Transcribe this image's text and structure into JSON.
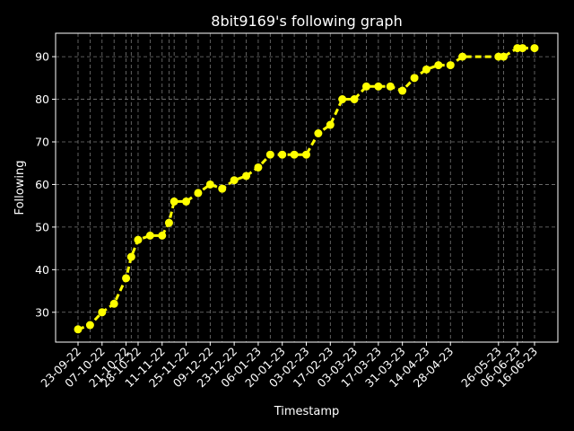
{
  "chart_data": {
    "type": "line",
    "title": "8bit9169's following graph",
    "xlabel": "Timestamp",
    "ylabel": "Following",
    "ylim": [
      23,
      95.5
    ],
    "yticks": [
      30,
      40,
      50,
      60,
      70,
      80,
      90
    ],
    "grid": true,
    "colors": {
      "background": "#000000",
      "line": "#ffff00",
      "marker": "#ffff00",
      "text": "#ffffff",
      "grid": "#777777"
    },
    "x": [
      "23-09-22",
      "30-09-22",
      "07-10-22",
      "14-10-22",
      "21-10-22",
      "24-10-22",
      "28-10-22",
      "04-11-22",
      "11-11-22",
      "15-11-22",
      "18-11-22",
      "25-11-22",
      "02-12-22",
      "09-12-22",
      "16-12-22",
      "23-12-22",
      "30-12-22",
      "06-01-23",
      "13-01-23",
      "20-01-23",
      "27-01-23",
      "03-02-23",
      "10-02-23",
      "17-02-23",
      "24-02-23",
      "03-03-23",
      "10-03-23",
      "17-03-23",
      "24-03-23",
      "31-03-23",
      "07-04-23",
      "14-04-23",
      "21-04-23",
      "28-04-23",
      "05-05-23",
      "26-05-23",
      "29-05-23",
      "06-06-23",
      "09-06-23",
      "16-06-23"
    ],
    "x_tick_labels": [
      "23-09-22",
      "07-10-22",
      "21-10-22",
      "28-10-22",
      "11-11-22",
      "25-11-22",
      "09-12-22",
      "23-12-22",
      "06-01-23",
      "20-01-23",
      "03-02-23",
      "17-02-23",
      "03-03-23",
      "17-03-23",
      "31-03-23",
      "14-04-23",
      "28-04-23",
      "26-05-23",
      "06-06-23",
      "16-06-23"
    ],
    "series": [
      {
        "values": [
          26,
          27,
          30,
          32,
          38,
          43,
          47,
          48,
          48,
          51,
          56,
          56,
          58,
          60,
          59,
          61,
          62,
          64,
          67,
          67,
          67,
          67,
          72,
          74,
          80,
          80,
          83,
          83,
          83,
          82,
          85,
          87,
          88,
          88,
          90,
          90,
          90,
          92,
          92,
          92
        ]
      }
    ]
  }
}
